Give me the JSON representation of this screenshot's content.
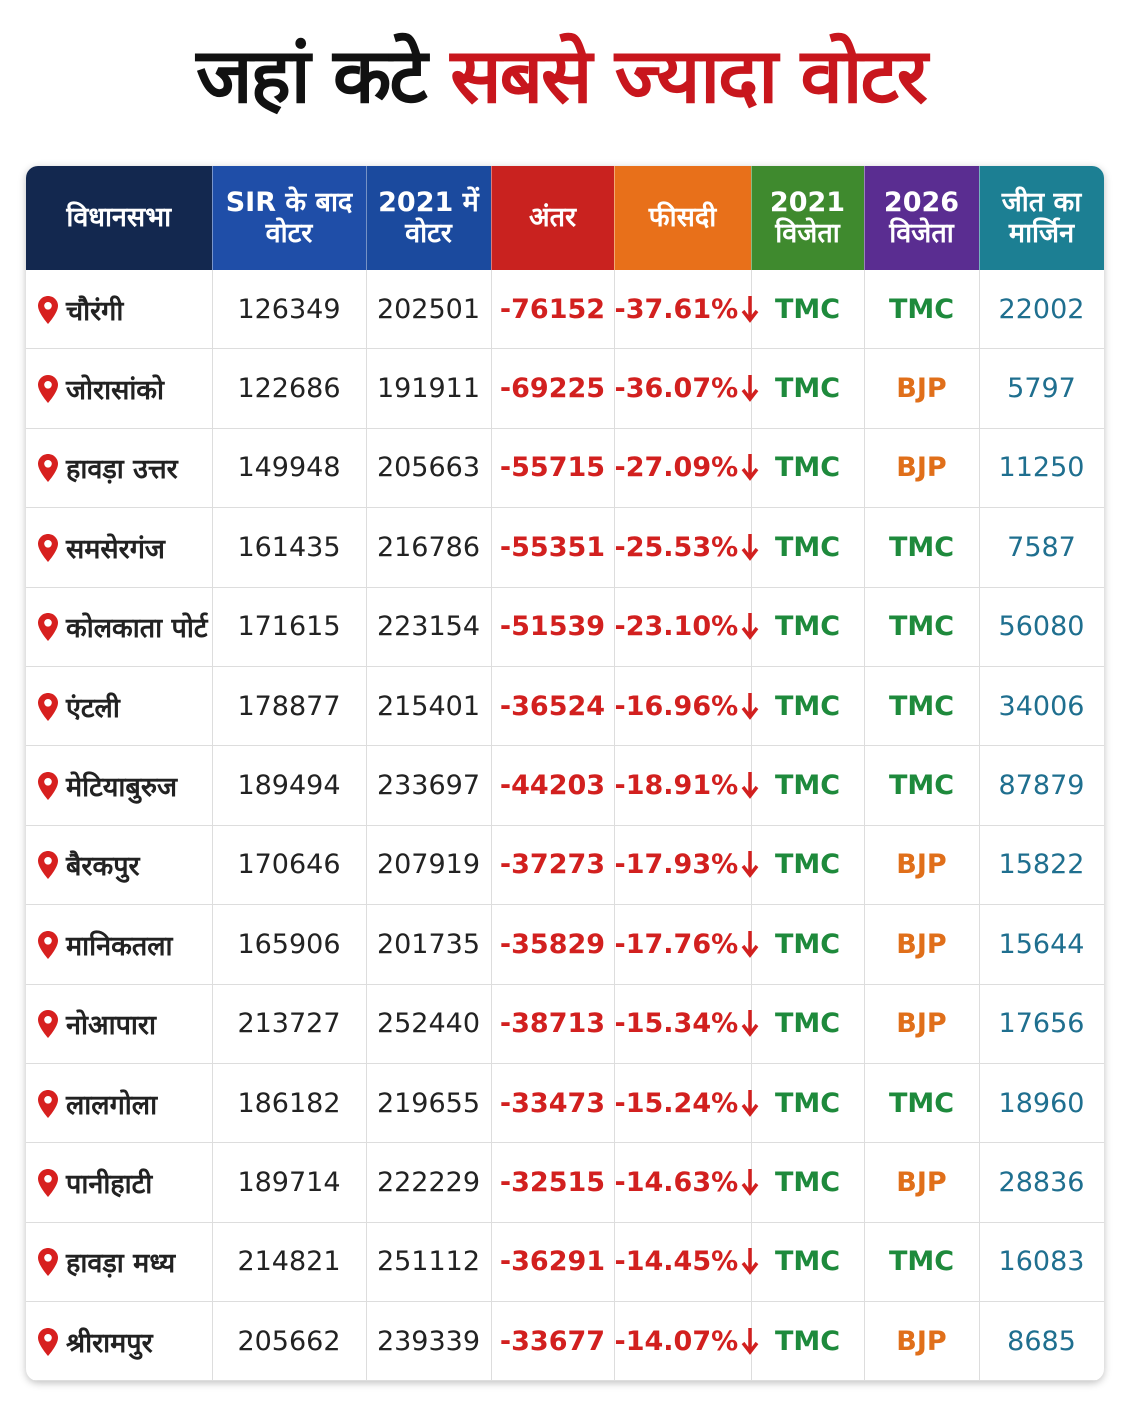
{
  "header": {
    "title_part1": "जहां कटे",
    "title_part2": "सबसे ज्यादा वोटर"
  },
  "table": {
    "columns": [
      "विधानसभा",
      "SIR के बाद\nवोटर",
      "2021 में\nवोटर",
      "अंतर",
      "फीसदी",
      "2021\nविजेता",
      "2026\nविजेता",
      "जीत का\nमार्जिन"
    ],
    "rows": [
      [
        "चौरंगी",
        "126349",
        "202501",
        "-76152",
        "-37.61%",
        "TMC",
        "TMC",
        "22002"
      ],
      [
        "जोरासांको",
        "122686",
        "191911",
        "-69225",
        "-36.07%",
        "TMC",
        "BJP",
        "5797"
      ],
      [
        "हावड़ा उत्तर",
        "149948",
        "205663",
        "-55715",
        "-27.09%",
        "TMC",
        "BJP",
        "11250"
      ],
      [
        "समसेरगंज",
        "161435",
        "216786",
        "-55351",
        "-25.53%",
        "TMC",
        "TMC",
        "7587"
      ],
      [
        "कोलकाता पोर्ट",
        "171615",
        "223154",
        "-51539",
        "-23.10%",
        "TMC",
        "TMC",
        "56080"
      ],
      [
        "एंटली",
        "178877",
        "215401",
        "-36524",
        "-16.96%",
        "TMC",
        "TMC",
        "34006"
      ],
      [
        "मेटियाबुरुज",
        "189494",
        "233697",
        "-44203",
        "-18.91%",
        "TMC",
        "TMC",
        "87879"
      ],
      [
        "बैरकपुर",
        "170646",
        "207919",
        "-37273",
        "-17.93%",
        "TMC",
        "BJP",
        "15822"
      ],
      [
        "मानिकतला",
        "165906",
        "201735",
        "-35829",
        "-17.76%",
        "TMC",
        "BJP",
        "15644"
      ],
      [
        "नोआपारा",
        "213727",
        "252440",
        "-38713",
        "-15.34%",
        "TMC",
        "BJP",
        "17656"
      ],
      [
        "लालगोला",
        "186182",
        "219655",
        "-33473",
        "-15.24%",
        "TMC",
        "TMC",
        "18960"
      ],
      [
        "पानीहाटी",
        "189714",
        "222229",
        "-32515",
        "-14.63%",
        "TMC",
        "BJP",
        "28836"
      ],
      [
        "हावड़ा मध्य",
        "214821",
        "251112",
        "-36291",
        "-14.45%",
        "TMC",
        "TMC",
        "16083"
      ],
      [
        "श्रीरामपुर",
        "205662",
        "239339",
        "-33677",
        "-14.07%",
        "TMC",
        "BJP",
        "8685"
      ]
    ]
  }
}
